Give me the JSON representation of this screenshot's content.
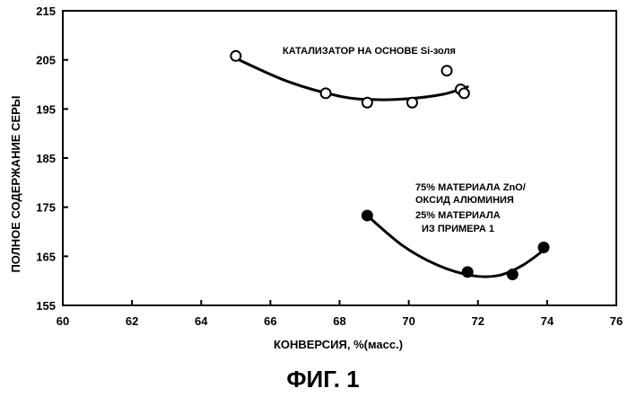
{
  "chart_data": {
    "type": "scatter",
    "title": "",
    "xlabel": "КОНВЕРСИЯ, %(масс.)",
    "ylabel": "ПОЛНОЕ СОДЕРЖАНИЕ СЕРЫ",
    "xlim": [
      60,
      76
    ],
    "ylim": [
      155,
      215
    ],
    "xticks": [
      60,
      62,
      64,
      66,
      68,
      70,
      72,
      74,
      76
    ],
    "yticks": [
      155,
      165,
      175,
      185,
      195,
      205,
      215
    ],
    "grid": false,
    "series": [
      {
        "name": "КАТАЛИЗАТОР НА ОСНОВЕ Si-золя",
        "marker": "open-circle",
        "points": [
          {
            "x": 65.0,
            "y": 205.8
          },
          {
            "x": 67.6,
            "y": 198.2
          },
          {
            "x": 68.8,
            "y": 196.3
          },
          {
            "x": 70.1,
            "y": 196.3
          },
          {
            "x": 71.1,
            "y": 202.8
          },
          {
            "x": 71.5,
            "y": 199.0
          },
          {
            "x": 71.6,
            "y": 198.2
          }
        ],
        "trend": [
          {
            "x": 65.0,
            "y": 205.3
          },
          {
            "x": 66.5,
            "y": 200.6
          },
          {
            "x": 68.0,
            "y": 197.6
          },
          {
            "x": 69.0,
            "y": 196.9
          },
          {
            "x": 70.0,
            "y": 197.1
          },
          {
            "x": 71.0,
            "y": 198.0
          },
          {
            "x": 71.7,
            "y": 199.5
          }
        ]
      },
      {
        "name_lines": [
          "75% МАТЕРИАЛА ZnO/",
          "ОКСИД АЛЮМИНИЯ",
          "25% МАТЕРИАЛА",
          "ИЗ ПРИМЕРА 1"
        ],
        "marker": "filled-circle",
        "points": [
          {
            "x": 68.8,
            "y": 173.3
          },
          {
            "x": 71.7,
            "y": 161.8
          },
          {
            "x": 73.0,
            "y": 161.3
          },
          {
            "x": 73.9,
            "y": 166.8
          }
        ],
        "trend": [
          {
            "x": 68.8,
            "y": 173.3
          },
          {
            "x": 69.8,
            "y": 167.3
          },
          {
            "x": 70.8,
            "y": 163.3
          },
          {
            "x": 71.8,
            "y": 161.1
          },
          {
            "x": 72.6,
            "y": 161.1
          },
          {
            "x": 73.3,
            "y": 163.2
          },
          {
            "x": 74.0,
            "y": 166.8
          }
        ]
      }
    ]
  },
  "figure_caption": "ФИГ. 1",
  "colors": {
    "ink": "#000000",
    "background": "#ffffff"
  }
}
